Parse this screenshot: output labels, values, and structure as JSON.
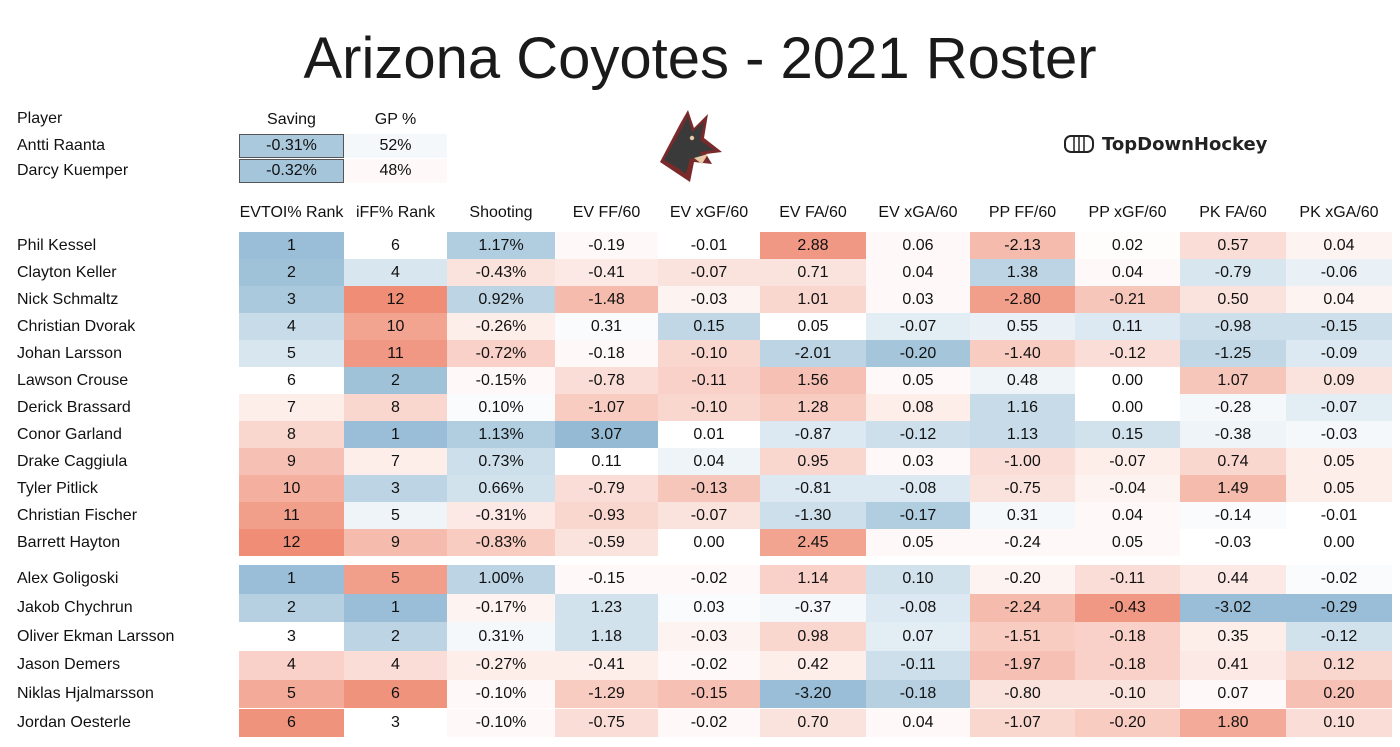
{
  "title": "Arizona Coyotes - 2021 Roster",
  "brand": {
    "name": "TopDownHockey",
    "icon": "rink-icon"
  },
  "logo": {
    "icon": "coyote-head-icon"
  },
  "colors": {
    "neg": "#ef8d76",
    "pos": "#8fb7d2",
    "neutral": "#ffffff"
  },
  "goalies": {
    "headers": [
      "Player",
      "Saving",
      "GP %"
    ],
    "rows": [
      {
        "name": "Antti Raanta",
        "saving": "-0.31%",
        "gp": "52%",
        "savingLevel": 0.75,
        "gpLevel": 0.1
      },
      {
        "name": "Darcy Kuemper",
        "saving": "-0.32%",
        "gp": "48%",
        "savingLevel": 0.8,
        "gpLevel": -0.05
      }
    ]
  },
  "skaters": {
    "headers": [
      "EVTOI% Rank",
      "iFF% Rank",
      "Shooting",
      "EV FF/60",
      "EV xGF/60",
      "EV FA/60",
      "EV xGA/60",
      "PP FF/60",
      "PP xGF/60",
      "PK FA/60",
      "PK xGA/60"
    ],
    "forwards": [
      {
        "name": "Phil Kessel",
        "values": [
          "1",
          "6",
          "1.17%",
          "-0.19",
          "-0.01",
          "2.88",
          "0.06",
          "-2.13",
          "0.02",
          "0.57",
          "0.04"
        ],
        "levels": [
          0.9,
          0,
          0.7,
          -0.05,
          0,
          -0.9,
          -0.05,
          -0.6,
          -0.02,
          -0.3,
          -0.1
        ]
      },
      {
        "name": "Clayton Keller",
        "values": [
          "2",
          "4",
          "-0.43%",
          "-0.41",
          "-0.07",
          "0.71",
          "0.04",
          "1.38",
          "0.04",
          "-0.79",
          "-0.06"
        ],
        "levels": [
          0.85,
          0.35,
          -0.25,
          -0.2,
          -0.25,
          -0.25,
          -0.05,
          0.6,
          -0.05,
          0.35,
          0.2
        ]
      },
      {
        "name": "Nick Schmaltz",
        "values": [
          "3",
          "12",
          "0.92%",
          "-1.48",
          "-0.03",
          "1.01",
          "0.03",
          "-2.80",
          "-0.21",
          "0.50",
          "0.04"
        ],
        "levels": [
          0.75,
          -1,
          0.6,
          -0.6,
          -0.1,
          -0.35,
          -0.05,
          -0.85,
          -0.5,
          -0.25,
          -0.1
        ]
      },
      {
        "name": "Christian Dvorak",
        "values": [
          "4",
          "10",
          "-0.26%",
          "0.31",
          "0.15",
          "0.05",
          "-0.07",
          "0.55",
          "0.11",
          "-0.98",
          "-0.15"
        ],
        "levels": [
          0.5,
          -0.8,
          -0.15,
          0.05,
          0.55,
          0,
          0.25,
          0.2,
          0.3,
          0.45,
          0.45
        ]
      },
      {
        "name": "Johan Larsson",
        "values": [
          "5",
          "11",
          "-0.72%",
          "-0.18",
          "-0.10",
          "-2.01",
          "-0.20",
          "-1.40",
          "-0.12",
          "-1.25",
          "-0.09"
        ],
        "levels": [
          0.35,
          -0.9,
          -0.4,
          -0.05,
          -0.35,
          0.6,
          0.8,
          -0.45,
          -0.3,
          0.55,
          0.3
        ]
      },
      {
        "name": "Lawson Crouse",
        "values": [
          "6",
          "2",
          "-0.15%",
          "-0.78",
          "-0.11",
          "1.56",
          "0.05",
          "0.48",
          "0.00",
          "1.07",
          "0.09"
        ],
        "levels": [
          0,
          0.85,
          -0.05,
          -0.3,
          -0.4,
          -0.55,
          -0.05,
          0.15,
          0,
          -0.5,
          -0.25
        ]
      },
      {
        "name": "Derick Brassard",
        "values": [
          "7",
          "8",
          "0.10%",
          "-1.07",
          "-0.10",
          "1.28",
          "0.08",
          "1.16",
          "0.00",
          "-0.28",
          "-0.07"
        ],
        "levels": [
          -0.15,
          -0.35,
          0.05,
          -0.45,
          -0.35,
          -0.45,
          -0.15,
          0.5,
          0,
          0.1,
          0.25
        ]
      },
      {
        "name": "Conor Garland",
        "values": [
          "8",
          "1",
          "1.13%",
          "3.07",
          "0.01",
          "-0.87",
          "-0.12",
          "1.13",
          "0.15",
          "-0.38",
          "-0.03"
        ],
        "levels": [
          -0.35,
          0.9,
          0.7,
          0.95,
          0,
          0.3,
          0.45,
          0.5,
          0.4,
          0.15,
          0.1
        ]
      },
      {
        "name": "Drake Caggiula",
        "values": [
          "9",
          "7",
          "0.73%",
          "0.11",
          "0.04",
          "0.95",
          "0.03",
          "-1.00",
          "-0.07",
          "0.74",
          "0.05"
        ],
        "levels": [
          -0.55,
          -0.15,
          0.45,
          0,
          0.15,
          -0.35,
          -0.05,
          -0.3,
          -0.15,
          -0.35,
          -0.15
        ]
      },
      {
        "name": "Tyler Pitlick",
        "values": [
          "10",
          "3",
          "0.66%",
          "-0.79",
          "-0.13",
          "-0.81",
          "-0.08",
          "-0.75",
          "-0.04",
          "1.49",
          "0.05"
        ],
        "levels": [
          -0.7,
          0.6,
          0.4,
          -0.3,
          -0.5,
          0.3,
          0.3,
          -0.25,
          -0.1,
          -0.6,
          -0.15
        ]
      },
      {
        "name": "Christian Fischer",
        "values": [
          "11",
          "5",
          "-0.31%",
          "-0.93",
          "-0.07",
          "-1.30",
          "-0.17",
          "0.31",
          "0.04",
          "-0.14",
          "-0.01"
        ],
        "levels": [
          -0.85,
          0.15,
          -0.2,
          -0.35,
          -0.25,
          0.45,
          0.7,
          0.1,
          -0.05,
          0.05,
          0
        ]
      },
      {
        "name": "Barrett Hayton",
        "values": [
          "12",
          "9",
          "-0.83%",
          "-0.59",
          "0.00",
          "2.45",
          "0.05",
          "-0.24",
          "0.05",
          "-0.03",
          "0.00"
        ],
        "levels": [
          -1,
          -0.6,
          -0.45,
          -0.25,
          0,
          -0.8,
          -0.05,
          -0.05,
          -0.05,
          0,
          0
        ]
      }
    ],
    "defense": [
      {
        "name": "Alex Goligoski",
        "values": [
          "1",
          "5",
          "1.00%",
          "-0.15",
          "-0.02",
          "1.14",
          "0.10",
          "-0.20",
          "-0.11",
          "0.44",
          "-0.02"
        ],
        "levels": [
          0.9,
          -0.85,
          0.6,
          -0.05,
          -0.05,
          -0.4,
          0.4,
          -0.1,
          -0.3,
          -0.2,
          0.05
        ]
      },
      {
        "name": "Jakob Chychrun",
        "values": [
          "2",
          "1",
          "-0.17%",
          "1.23",
          "0.03",
          "-0.37",
          "-0.08",
          "-2.24",
          "-0.43",
          "-3.02",
          "-0.29"
        ],
        "levels": [
          0.65,
          0.9,
          -0.1,
          0.4,
          0.05,
          0.1,
          0.3,
          -0.6,
          -0.9,
          0.9,
          0.9
        ]
      },
      {
        "name": "Oliver Ekman Larsson",
        "values": [
          "3",
          "2",
          "0.31%",
          "1.18",
          "-0.03",
          "0.98",
          "0.07",
          "-1.51",
          "-0.18",
          "0.35",
          "-0.12"
        ],
        "levels": [
          0,
          0.6,
          0.1,
          0.4,
          -0.1,
          -0.35,
          0.25,
          -0.45,
          -0.4,
          -0.15,
          0.4
        ]
      },
      {
        "name": "Jason Demers",
        "values": [
          "4",
          "4",
          "-0.27%",
          "-0.41",
          "-0.02",
          "0.42",
          "-0.11",
          "-1.97",
          "-0.18",
          "0.41",
          "0.12"
        ],
        "levels": [
          -0.4,
          -0.3,
          -0.15,
          -0.15,
          -0.05,
          -0.15,
          0.45,
          -0.55,
          -0.4,
          -0.2,
          -0.35
        ]
      },
      {
        "name": "Niklas Hjalmarsson",
        "values": [
          "5",
          "6",
          "-0.10%",
          "-1.29",
          "-0.15",
          "-3.20",
          "-0.18",
          "-0.80",
          "-0.10",
          "0.07",
          "0.20"
        ],
        "levels": [
          -0.75,
          -0.95,
          -0.05,
          -0.45,
          -0.55,
          0.9,
          0.65,
          -0.25,
          -0.25,
          -0.05,
          -0.55
        ]
      },
      {
        "name": "Jordan Oesterle",
        "values": [
          "6",
          "3",
          "-0.10%",
          "-0.75",
          "-0.02",
          "0.70",
          "0.04",
          "-1.07",
          "-0.20",
          "1.80",
          "0.10"
        ],
        "levels": [
          -0.95,
          0,
          -0.05,
          -0.3,
          -0.05,
          -0.25,
          -0.05,
          -0.35,
          -0.45,
          -0.75,
          -0.3
        ]
      }
    ]
  }
}
